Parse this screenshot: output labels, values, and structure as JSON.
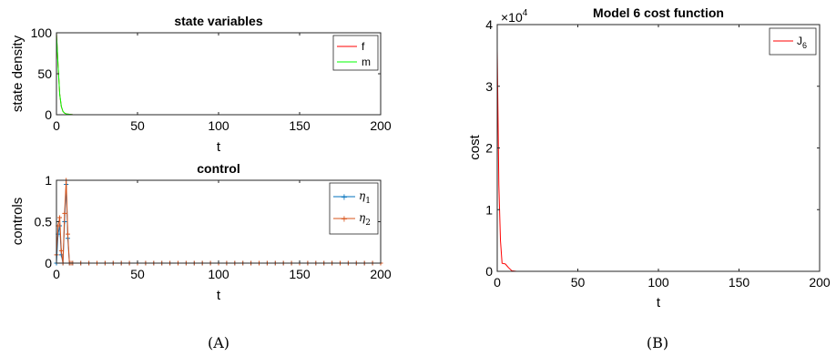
{
  "chart_data": [
    {
      "type": "line",
      "title": "state variables",
      "xlabel": "t",
      "ylabel": "state density",
      "xlim": [
        0,
        200
      ],
      "ylim": [
        0,
        100
      ],
      "xticks": [
        "0",
        "50",
        "100",
        "150",
        "200"
      ],
      "yticks": [
        "0",
        "50",
        "100"
      ],
      "legend": "top-right",
      "series": [
        {
          "name": "f",
          "color": "#ff0000",
          "x": [
            0,
            1,
            2,
            3,
            4,
            5,
            6,
            8,
            10,
            15,
            20,
            50,
            100,
            150,
            200
          ],
          "y": [
            100,
            60,
            25,
            10,
            4,
            2,
            1,
            0.5,
            0.2,
            0,
            0,
            0,
            0,
            0,
            0
          ]
        },
        {
          "name": "m",
          "color": "#00ff00",
          "x": [
            0,
            1,
            2,
            3,
            4,
            5,
            6,
            8,
            10,
            15,
            20,
            50,
            100,
            150,
            200
          ],
          "y": [
            100,
            60,
            25,
            10,
            4,
            2,
            1,
            0.5,
            0.2,
            0,
            0,
            0,
            0,
            0,
            0
          ]
        }
      ]
    },
    {
      "type": "line",
      "title": "control",
      "xlabel": "t",
      "ylabel": "controls",
      "xlim": [
        0,
        200
      ],
      "ylim": [
        0,
        1
      ],
      "xticks": [
        "0",
        "50",
        "100",
        "150",
        "200"
      ],
      "yticks": [
        "0",
        "0.5",
        "1"
      ],
      "legend": "top-right",
      "series": [
        {
          "name": "η",
          "subscript": "1",
          "color": "#0072bd",
          "x": [
            0,
            1,
            2,
            3,
            4,
            5,
            6,
            7,
            8,
            9,
            10,
            15,
            20,
            25,
            30,
            35,
            40,
            45,
            50,
            55,
            60,
            65,
            70,
            75,
            80,
            85,
            90,
            95,
            100,
            105,
            110,
            115,
            120,
            125,
            130,
            135,
            140,
            145,
            150,
            155,
            160,
            165,
            170,
            175,
            180,
            185,
            190,
            195,
            200
          ],
          "y": [
            0,
            0.35,
            0.45,
            0.1,
            0,
            0.5,
            0.95,
            0.3,
            0,
            0,
            0,
            0,
            0,
            0,
            0,
            0,
            0,
            0,
            0,
            0,
            0,
            0,
            0,
            0,
            0,
            0,
            0,
            0,
            0,
            0,
            0,
            0,
            0,
            0,
            0,
            0,
            0,
            0,
            0,
            0,
            0,
            0,
            0,
            0,
            0,
            0,
            0,
            0,
            0
          ]
        },
        {
          "name": "η",
          "subscript": "2",
          "color": "#d95319",
          "x": [
            0,
            1,
            2,
            3,
            4,
            5,
            6,
            7,
            8,
            9,
            10,
            15,
            20,
            25,
            30,
            35,
            40,
            45,
            50,
            55,
            60,
            65,
            70,
            75,
            80,
            85,
            90,
            95,
            100,
            105,
            110,
            115,
            120,
            125,
            130,
            135,
            140,
            145,
            150,
            155,
            160,
            165,
            170,
            175,
            180,
            185,
            190,
            195,
            200
          ],
          "y": [
            0.1,
            0.45,
            0.55,
            0.15,
            0,
            0.6,
            1.0,
            0.35,
            0,
            0,
            0,
            0,
            0,
            0,
            0,
            0,
            0,
            0,
            0,
            0,
            0,
            0,
            0,
            0,
            0,
            0,
            0,
            0,
            0,
            0,
            0,
            0,
            0,
            0,
            0,
            0,
            0,
            0,
            0,
            0,
            0,
            0,
            0,
            0,
            0,
            0,
            0,
            0,
            0
          ]
        }
      ]
    },
    {
      "type": "line",
      "title": "Model 6 cost function",
      "xlabel": "t",
      "ylabel": "cost",
      "xlim": [
        0,
        200
      ],
      "ylim": [
        0,
        40000
      ],
      "xticks": [
        "0",
        "50",
        "100",
        "150",
        "200"
      ],
      "yticks": [
        "0",
        "1",
        "2",
        "3",
        "4"
      ],
      "y_exponent": {
        "base": "×10",
        "power": "4"
      },
      "legend": "top-right",
      "series": [
        {
          "name": "J",
          "subscript": "6",
          "color": "#ff0000",
          "x": [
            0,
            1,
            2,
            3,
            5,
            7,
            9,
            12,
            20,
            50,
            100,
            150,
            200
          ],
          "y": [
            36000,
            14000,
            5000,
            1300,
            1200,
            600,
            100,
            0,
            0,
            0,
            0,
            0,
            0
          ]
        }
      ]
    }
  ],
  "subfigure_labels": [
    "(A)",
    "(B)"
  ]
}
